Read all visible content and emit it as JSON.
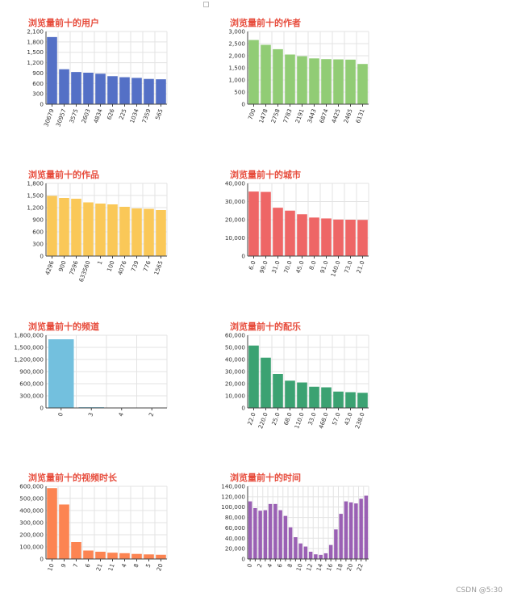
{
  "watermark": "CSDN @5:30",
  "chart_data": [
    {
      "type": "bar",
      "title": "浏览量前十的用户",
      "color": "#5470c6",
      "categories": [
        "30679",
        "30957",
        "3575",
        "2603",
        "4834",
        "626",
        "225",
        "1034",
        "7359",
        "565"
      ],
      "values": [
        1940,
        1010,
        930,
        910,
        880,
        810,
        780,
        760,
        730,
        720
      ],
      "yticks": [
        "0",
        "300",
        "600",
        "900",
        "1,200",
        "1,500",
        "1,800",
        "2,100"
      ],
      "ylim": [
        0,
        2100
      ],
      "xlabel_rotate": true
    },
    {
      "type": "bar",
      "title": "浏览量前十的作者",
      "color": "#91cc75",
      "categories": [
        "700",
        "1478",
        "2758",
        "7783",
        "2191",
        "3443",
        "6874",
        "4425",
        "2465",
        "6131"
      ],
      "values": [
        2650,
        2450,
        2270,
        2050,
        1980,
        1890,
        1860,
        1850,
        1840,
        1660
      ],
      "yticks": [
        "0",
        "500",
        "1,000",
        "1,500",
        "2,000",
        "2,500",
        "3,000"
      ],
      "ylim": [
        0,
        3000
      ],
      "xlabel_rotate": true
    },
    {
      "type": "bar",
      "title": "浏览量前十的作品",
      "color": "#fac858",
      "categories": [
        "4296",
        "900",
        "7596",
        "633560",
        "1",
        "100",
        "4076",
        "739",
        "776",
        "1565"
      ],
      "values": [
        1490,
        1440,
        1420,
        1330,
        1300,
        1280,
        1220,
        1180,
        1170,
        1140
      ],
      "yticks": [
        "0",
        "300",
        "600",
        "900",
        "1,200",
        "1,500",
        "1,800"
      ],
      "ylim": [
        0,
        1800
      ],
      "xlabel_rotate": true
    },
    {
      "type": "bar",
      "title": "浏览量前十的城市",
      "color": "#ee6666",
      "categories": [
        "6.0",
        "99.0",
        "31.0",
        "70.0",
        "45.0",
        "8.0",
        "91.0",
        "140.0",
        "73.0",
        "21.0"
      ],
      "values": [
        35500,
        35300,
        26600,
        25000,
        23000,
        21200,
        20700,
        20100,
        20000,
        19900
      ],
      "yticks": [
        "0",
        "10,000",
        "20,000",
        "30,000",
        "40,000"
      ],
      "ylim": [
        0,
        40000
      ],
      "xlabel_rotate": true
    },
    {
      "type": "bar",
      "title": "浏览量前十的频道",
      "color": "#73c0de",
      "categories": [
        "0",
        "3",
        "4",
        "2"
      ],
      "values": [
        1700000,
        18000,
        4000,
        2000
      ],
      "yticks": [
        "0",
        "300,000",
        "600,000",
        "900,000",
        "1,200,000",
        "1,500,000",
        "1,800,000"
      ],
      "ylim": [
        0,
        1800000
      ],
      "xlabel_rotate": true
    },
    {
      "type": "bar",
      "title": "浏览量前十的配乐",
      "color": "#3ba272",
      "categories": [
        "22.0",
        "220.0",
        "25.0",
        "68.0",
        "110.0",
        "33.0",
        "468.0",
        "57.0",
        "43.0",
        "238.0"
      ],
      "values": [
        51500,
        41500,
        28000,
        22500,
        21000,
        17500,
        17000,
        13500,
        13000,
        12500
      ],
      "yticks": [
        "0",
        "10,000",
        "20,000",
        "30,000",
        "40,000",
        "50,000",
        "60,000"
      ],
      "ylim": [
        0,
        60000
      ],
      "xlabel_rotate": true
    },
    {
      "type": "bar",
      "title": "浏览量前十的视频时长",
      "color": "#fc8452",
      "categories": [
        "10",
        "9",
        "7",
        "6",
        "21",
        "11",
        "4",
        "8",
        "5",
        "20"
      ],
      "values": [
        585000,
        450000,
        140000,
        70000,
        60000,
        52000,
        48000,
        42000,
        38000,
        35000
      ],
      "yticks": [
        "0",
        "100,000",
        "200,000",
        "300,000",
        "400,000",
        "500,000",
        "600,000"
      ],
      "ylim": [
        0,
        600000
      ],
      "xlabel_rotate": true
    },
    {
      "type": "bar",
      "title": "浏览量前十的时间",
      "color": "#9a60b4",
      "categories": [
        "0",
        "1",
        "2",
        "3",
        "4",
        "5",
        "6",
        "7",
        "8",
        "9",
        "10",
        "11",
        "12",
        "13",
        "14",
        "15",
        "16",
        "17",
        "18",
        "19",
        "20",
        "21",
        "22",
        "23"
      ],
      "categories_labels": [
        "0",
        "",
        "2",
        "",
        "4",
        "",
        "6",
        "",
        "8",
        "",
        "10",
        "",
        "12",
        "",
        "14",
        "",
        "16",
        "",
        "18",
        "",
        "20",
        "",
        "22",
        ""
      ],
      "values": [
        111000,
        98000,
        93000,
        94000,
        106000,
        106000,
        94000,
        83000,
        61000,
        42000,
        30000,
        24000,
        14000,
        9000,
        8000,
        11000,
        27000,
        57000,
        87000,
        111000,
        109000,
        107000,
        116000,
        122000
      ],
      "yticks": [
        "0",
        "20,000",
        "40,000",
        "60,000",
        "80,000",
        "100,000",
        "120,000",
        "140,000"
      ],
      "ylim": [
        0,
        140000
      ],
      "xlabel_rotate": true
    }
  ]
}
